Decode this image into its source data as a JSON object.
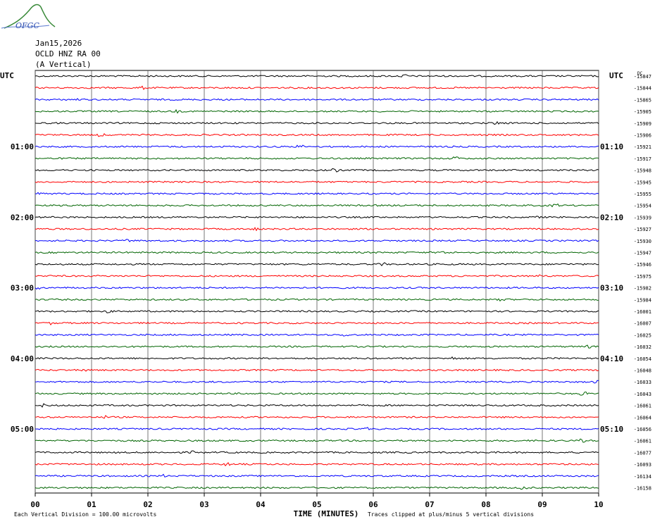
{
  "header": {
    "logo_text": "OFGC",
    "date": "Jan15,2026",
    "station": "OCLD HNZ RA 00",
    "component": "(A Vertical)"
  },
  "chart_data": {
    "type": "line",
    "title": "Jan15,2026 OCLD HNZ RA 00 (A Vertical)",
    "xlabel": "TIME (MINUTES)",
    "ylabel": "UTC",
    "xlim": [
      0,
      10
    ],
    "x_ticks": [
      "00",
      "01",
      "02",
      "03",
      "04",
      "05",
      "06",
      "07",
      "08",
      "09",
      "10"
    ],
    "grid": "vertical lines at each minute",
    "left_axis_title": "UTC",
    "right_axis_title": "UTC",
    "dc_label": "DC",
    "left_time_labels": [
      {
        "label": "01:00",
        "trace_index": 6
      },
      {
        "label": "02:00",
        "trace_index": 12
      },
      {
        "label": "03:00",
        "trace_index": 18
      },
      {
        "label": "04:00",
        "trace_index": 24
      },
      {
        "label": "05:00",
        "trace_index": 30
      }
    ],
    "right_time_labels": [
      {
        "label": "01:10",
        "trace_index": 6
      },
      {
        "label": "02:10",
        "trace_index": 12
      },
      {
        "label": "03:10",
        "trace_index": 18
      },
      {
        "label": "04:10",
        "trace_index": 24
      },
      {
        "label": "05:10",
        "trace_index": 30
      }
    ],
    "trace_colors": [
      "#000000",
      "#ff0000",
      "#0000ff",
      "#006400"
    ],
    "series": [
      {
        "dc_offset": -15847
      },
      {
        "dc_offset": -15844
      },
      {
        "dc_offset": -15865
      },
      {
        "dc_offset": -15905
      },
      {
        "dc_offset": -15909
      },
      {
        "dc_offset": -15906
      },
      {
        "dc_offset": -15921
      },
      {
        "dc_offset": -15917
      },
      {
        "dc_offset": -15948
      },
      {
        "dc_offset": -15945
      },
      {
        "dc_offset": -15955
      },
      {
        "dc_offset": -15954
      },
      {
        "dc_offset": -15939
      },
      {
        "dc_offset": -15927
      },
      {
        "dc_offset": -15930
      },
      {
        "dc_offset": -15947
      },
      {
        "dc_offset": -15946
      },
      {
        "dc_offset": -15975
      },
      {
        "dc_offset": -15982
      },
      {
        "dc_offset": -15984
      },
      {
        "dc_offset": -16001
      },
      {
        "dc_offset": -16007
      },
      {
        "dc_offset": -16025
      },
      {
        "dc_offset": -16032
      },
      {
        "dc_offset": -16054
      },
      {
        "dc_offset": -16048
      },
      {
        "dc_offset": -16033
      },
      {
        "dc_offset": -16043
      },
      {
        "dc_offset": -16061
      },
      {
        "dc_offset": -16064
      },
      {
        "dc_offset": -16056
      },
      {
        "dc_offset": -16061
      },
      {
        "dc_offset": -16077
      },
      {
        "dc_offset": -16093
      },
      {
        "dc_offset": -16134
      },
      {
        "dc_offset": -16158
      }
    ],
    "footer_left": "Each Vertical Division =  100.00 microvolts",
    "footer_right": "Traces clipped at plus/minus 5 vertical divisions"
  }
}
